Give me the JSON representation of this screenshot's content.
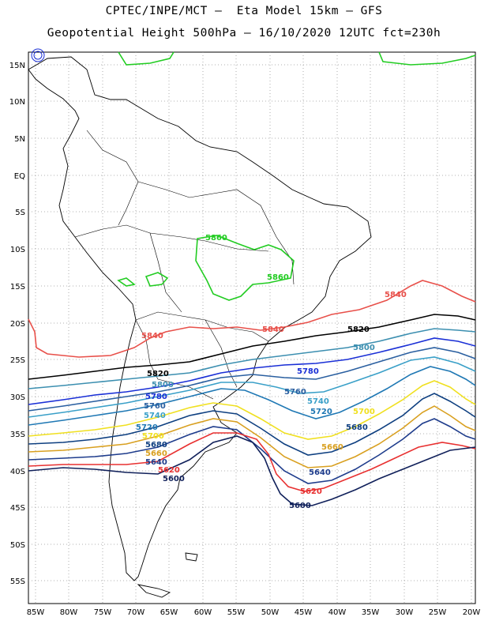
{
  "header": {
    "title_line1": "CPTEC/INPE/MCT –  Eta Model 15km – GFS",
    "title_line2": "Geopotential Height 500hPa – 16/10/2020 12UTC fct=230h"
  },
  "axes": {
    "lat_labels": [
      "15N",
      "10N",
      "5N",
      "EQ",
      "5S",
      "10S",
      "15S",
      "20S",
      "25S",
      "30S",
      "35S",
      "40S",
      "45S",
      "50S",
      "55S"
    ],
    "lon_labels": [
      "85W",
      "80W",
      "75W",
      "70W",
      "65W",
      "60W",
      "55W",
      "50W",
      "45W",
      "40W",
      "35W",
      "30W",
      "25W",
      "20W"
    ]
  },
  "colors": {
    "c5860": "#22cc22",
    "c5840": "#e8504a",
    "c5820": "#000000",
    "c5800": "#3c8fb0",
    "c5780": "#1a2fd6",
    "c5760": "#2a5fa0",
    "c5740": "#3aa0c8",
    "c5720": "#1f78b4",
    "c5700": "#f0e020",
    "c5680": "#0e3f80",
    "c5660": "#d9a020",
    "c5640": "#1e3c8c",
    "c5620": "#e83030",
    "c5600": "#10205a"
  },
  "contour_labels": {
    "l5860_a": "5860",
    "l5860_b": "5860",
    "l5840_a": "5840",
    "l5840_b": "5840",
    "l5840_c": "5840",
    "l5820_a": "5820",
    "l5820_b": "5820",
    "l5800_a": "5800",
    "l5800_b": "5800",
    "l5780_a": "5780",
    "l5780_b": "5780",
    "l5760_a": "5760",
    "l5760_b": "5760",
    "l5740_a": "5740",
    "l5740_b": "5740",
    "l5720_a": "5720",
    "l5720_b": "5720",
    "l5700_a": "5700",
    "l5700_b": "5700",
    "l5680_a": "5680",
    "l5680_b": "5680",
    "l5660_a": "5660",
    "l5660_b": "5660",
    "l5640_a": "5640",
    "l5640_b": "5640",
    "l5620_a": "5620",
    "l5620_b": "5620",
    "l5600_a": "5600",
    "l5600_b": "5600"
  }
}
